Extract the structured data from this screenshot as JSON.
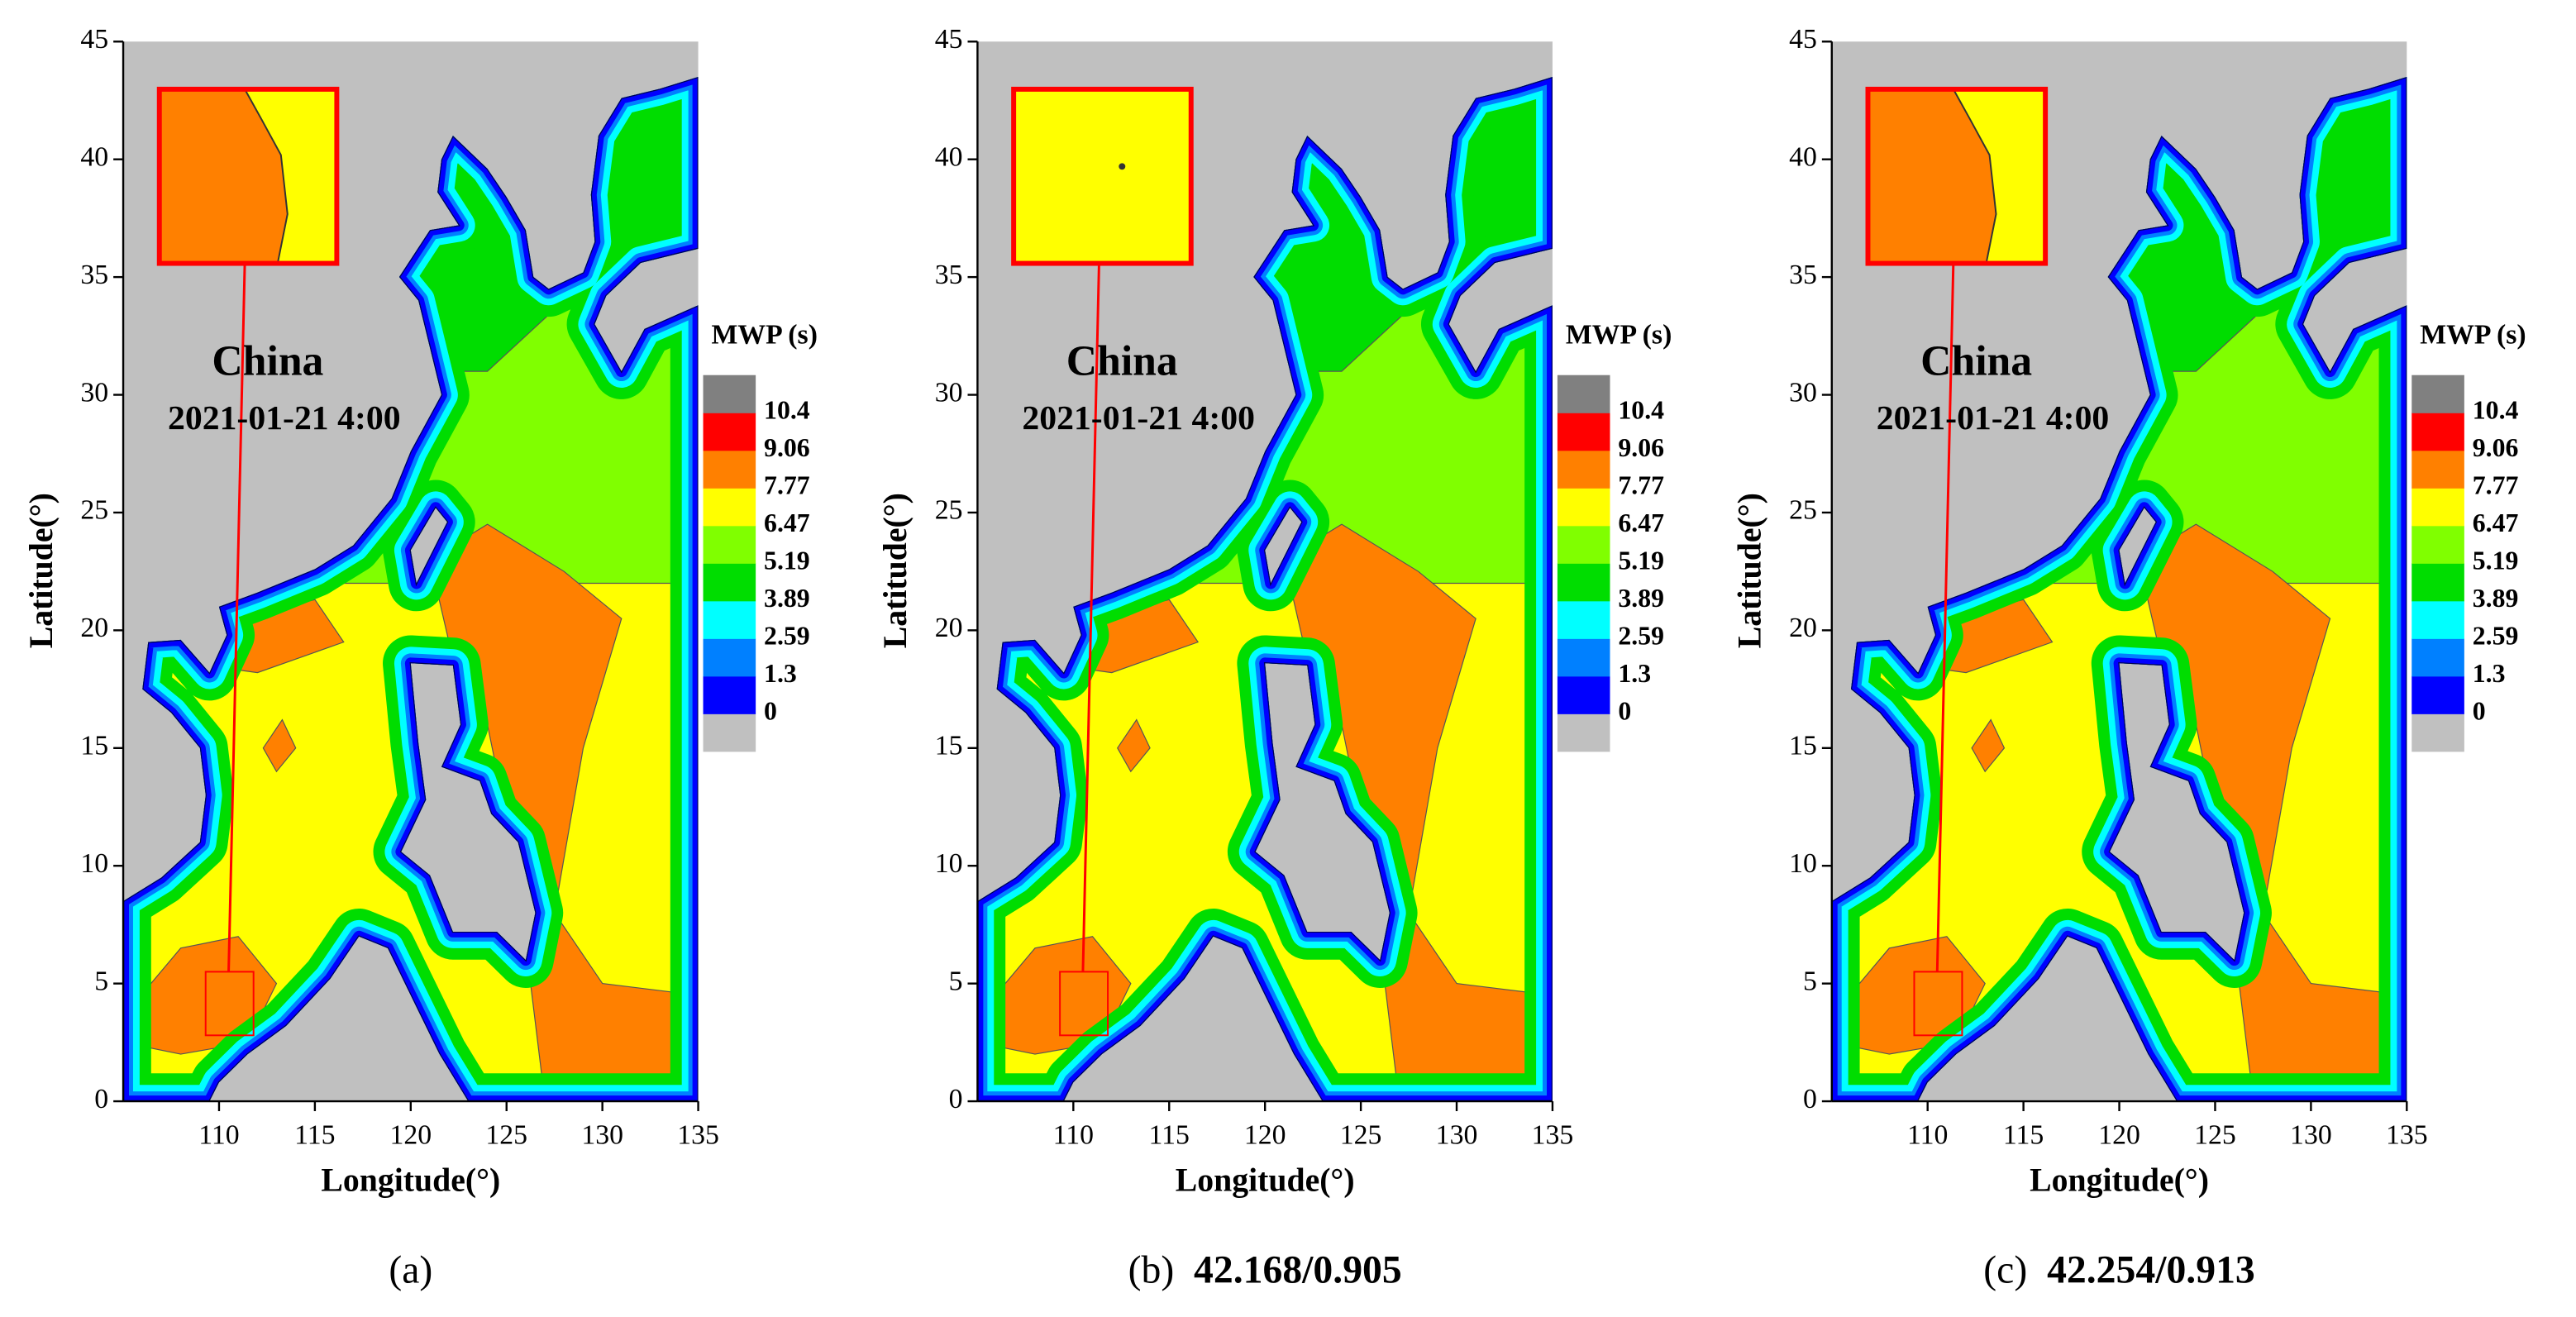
{
  "chart_data": [
    {
      "type": "contour",
      "annotation": "China",
      "timestamp": "2021-01-21 4:00",
      "xlabel": "Longitude(°)",
      "ylabel": "Latitude(°)",
      "xlim": [
        105,
        135
      ],
      "ylim": [
        0,
        45
      ],
      "xticks": [
        110,
        115,
        120,
        125,
        130,
        135
      ],
      "yticks": [
        0,
        5,
        10,
        15,
        20,
        25,
        30,
        35,
        40,
        45
      ],
      "colorbar_title": "MWP (s)",
      "levels": [
        0,
        1.3,
        2.59,
        3.89,
        5.19,
        6.47,
        7.77,
        9.06,
        10.4
      ],
      "level_colors": [
        "#c0c0c0",
        "#0000ff",
        "#0080ff",
        "#00ffff",
        "#00dd00",
        "#80ff00",
        "#ffff00",
        "#ff8000",
        "#ff0000",
        "#808080"
      ],
      "caption": "(a)"
    },
    {
      "type": "contour",
      "annotation": "China",
      "timestamp": "2021-01-21 4:00",
      "xlabel": "Longitude(°)",
      "ylabel": "Latitude(°)",
      "xlim": [
        105,
        135
      ],
      "ylim": [
        0,
        45
      ],
      "xticks": [
        110,
        115,
        120,
        125,
        130,
        135
      ],
      "yticks": [
        0,
        5,
        10,
        15,
        20,
        25,
        30,
        35,
        40,
        45
      ],
      "colorbar_title": "MWP (s)",
      "levels": [
        0,
        1.3,
        2.59,
        3.89,
        5.19,
        6.47,
        7.77,
        9.06,
        10.4
      ],
      "level_colors": [
        "#c0c0c0",
        "#0000ff",
        "#0080ff",
        "#00ffff",
        "#00dd00",
        "#80ff00",
        "#ffff00",
        "#ff8000",
        "#ff0000",
        "#808080"
      ],
      "caption": "(b)",
      "metrics": "42.168/0.905"
    },
    {
      "type": "contour",
      "annotation": "China",
      "timestamp": "2021-01-21 4:00",
      "xlabel": "Longitude(°)",
      "ylabel": "Latitude(°)",
      "xlim": [
        105,
        135
      ],
      "ylim": [
        0,
        45
      ],
      "xticks": [
        110,
        115,
        120,
        125,
        130,
        135
      ],
      "yticks": [
        0,
        5,
        10,
        15,
        20,
        25,
        30,
        35,
        40,
        45
      ],
      "colorbar_title": "MWP (s)",
      "levels": [
        0,
        1.3,
        2.59,
        3.89,
        5.19,
        6.47,
        7.77,
        9.06,
        10.4
      ],
      "level_colors": [
        "#c0c0c0",
        "#0000ff",
        "#0080ff",
        "#00ffff",
        "#00dd00",
        "#80ff00",
        "#ffff00",
        "#ff8000",
        "#ff0000",
        "#808080"
      ],
      "caption": "(c)",
      "metrics": "42.254/0.913"
    }
  ]
}
